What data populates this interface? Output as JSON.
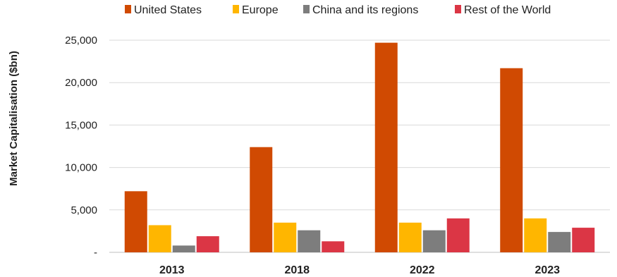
{
  "chart_data": {
    "type": "bar",
    "title": "",
    "xlabel": "",
    "ylabel": "Market Capitalisation ($bn)",
    "categories": [
      "2013",
      "2018",
      "2022",
      "2023"
    ],
    "series": [
      {
        "name": "United States",
        "color": "#D04A02",
        "values": [
          7200,
          12400,
          24700,
          21700
        ]
      },
      {
        "name": "Europe",
        "color": "#FFB600",
        "values": [
          3200,
          3500,
          3500,
          4000
        ]
      },
      {
        "name": "China and its regions",
        "color": "#7D7D7D",
        "values": [
          800,
          2600,
          2600,
          2400
        ]
      },
      {
        "name": "Rest of the World",
        "color": "#DB3645",
        "values": [
          1900,
          1300,
          4000,
          2900
        ]
      }
    ],
    "ylim": [
      0,
      25000
    ],
    "yticks": [
      0,
      5000,
      10000,
      15000,
      20000,
      25000
    ],
    "ytick_labels": [
      "-",
      "5,000",
      "10,000",
      "15,000",
      "20,000",
      "25,000"
    ],
    "grid": true,
    "legend_position": "top"
  }
}
